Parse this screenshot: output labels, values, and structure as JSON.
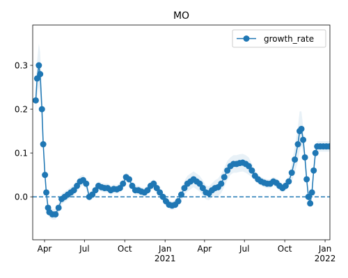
{
  "chart_data": {
    "type": "line",
    "title": "MO",
    "x": [
      "2020-03-12",
      "2020-03-15",
      "2020-03-19",
      "2020-03-22",
      "2020-03-26",
      "2020-03-29",
      "2020-04-02",
      "2020-04-05",
      "2020-04-09",
      "2020-04-12",
      "2020-04-19",
      "2020-04-26",
      "2020-05-03",
      "2020-05-10",
      "2020-05-17",
      "2020-05-24",
      "2020-05-31",
      "2020-06-07",
      "2020-06-14",
      "2020-06-21",
      "2020-06-28",
      "2020-07-05",
      "2020-07-12",
      "2020-07-19",
      "2020-07-26",
      "2020-08-02",
      "2020-08-09",
      "2020-08-16",
      "2020-08-23",
      "2020-08-30",
      "2020-09-06",
      "2020-09-13",
      "2020-09-20",
      "2020-09-27",
      "2020-10-04",
      "2020-10-11",
      "2020-10-18",
      "2020-10-25",
      "2020-11-01",
      "2020-11-08",
      "2020-11-15",
      "2020-11-22",
      "2020-11-29",
      "2020-12-06",
      "2020-12-13",
      "2020-12-20",
      "2020-12-27",
      "2021-01-03",
      "2021-01-10",
      "2021-01-17",
      "2021-01-24",
      "2021-01-31",
      "2021-02-07",
      "2021-02-14",
      "2021-02-21",
      "2021-02-28",
      "2021-03-07",
      "2021-03-14",
      "2021-03-21",
      "2021-03-28",
      "2021-04-04",
      "2021-04-11",
      "2021-04-18",
      "2021-04-25",
      "2021-05-02",
      "2021-05-09",
      "2021-05-16",
      "2021-05-23",
      "2021-05-30",
      "2021-06-06",
      "2021-06-13",
      "2021-06-20",
      "2021-06-27",
      "2021-07-04",
      "2021-07-11",
      "2021-07-18",
      "2021-07-25",
      "2021-08-01",
      "2021-08-08",
      "2021-08-15",
      "2021-08-22",
      "2021-08-29",
      "2021-09-05",
      "2021-09-12",
      "2021-09-19",
      "2021-09-26",
      "2021-10-03",
      "2021-10-10",
      "2021-10-17",
      "2021-10-24",
      "2021-10-31",
      "2021-11-04",
      "2021-11-08",
      "2021-11-12",
      "2021-11-16",
      "2021-11-20",
      "2021-11-24",
      "2021-11-28",
      "2021-12-02",
      "2021-12-06",
      "2021-12-10",
      "2021-12-14",
      "2021-12-21",
      "2021-12-28",
      "2022-01-04",
      "2022-01-11"
    ],
    "series": [
      {
        "name": "growth_rate",
        "color": "#1f77b4",
        "values": [
          0.22,
          0.27,
          0.3,
          0.28,
          0.2,
          0.12,
          0.05,
          0.01,
          -0.025,
          -0.035,
          -0.04,
          -0.04,
          -0.025,
          -0.005,
          0.0,
          0.005,
          0.01,
          0.015,
          0.025,
          0.035,
          0.038,
          0.03,
          0.0,
          0.005,
          0.015,
          0.025,
          0.022,
          0.02,
          0.02,
          0.015,
          0.018,
          0.017,
          0.02,
          0.03,
          0.045,
          0.04,
          0.025,
          0.015,
          0.015,
          0.012,
          0.01,
          0.015,
          0.025,
          0.03,
          0.02,
          0.01,
          0.0,
          -0.01,
          -0.018,
          -0.02,
          -0.018,
          -0.01,
          0.005,
          0.02,
          0.03,
          0.035,
          0.04,
          0.035,
          0.03,
          0.02,
          0.01,
          0.008,
          0.015,
          0.02,
          0.022,
          0.03,
          0.045,
          0.06,
          0.07,
          0.075,
          0.075,
          0.077,
          0.078,
          0.075,
          0.07,
          0.06,
          0.048,
          0.04,
          0.035,
          0.032,
          0.03,
          0.03,
          0.035,
          0.032,
          0.025,
          0.02,
          0.025,
          0.035,
          0.055,
          0.085,
          0.12,
          0.15,
          0.155,
          0.13,
          0.09,
          0.04,
          0.0,
          -0.015,
          0.01,
          0.06,
          0.1,
          0.115,
          0.115,
          0.115,
          0.115,
          0.115
        ],
        "error": [
          0.03,
          0.04,
          0.05,
          0.05,
          0.04,
          0.03,
          0.02,
          0.015,
          0.012,
          0.012,
          0.012,
          0.012,
          0.012,
          0.012,
          0.012,
          0.012,
          0.012,
          0.012,
          0.012,
          0.012,
          0.012,
          0.012,
          0.01,
          0.01,
          0.01,
          0.01,
          0.01,
          0.01,
          0.01,
          0.01,
          0.01,
          0.01,
          0.01,
          0.01,
          0.01,
          0.01,
          0.01,
          0.01,
          0.01,
          0.01,
          0.01,
          0.01,
          0.01,
          0.01,
          0.01,
          0.01,
          0.01,
          0.01,
          0.01,
          0.01,
          0.01,
          0.012,
          0.014,
          0.016,
          0.018,
          0.018,
          0.018,
          0.018,
          0.018,
          0.018,
          0.016,
          0.016,
          0.016,
          0.018,
          0.02,
          0.022,
          0.022,
          0.022,
          0.02,
          0.02,
          0.02,
          0.02,
          0.02,
          0.02,
          0.02,
          0.015,
          0.012,
          0.01,
          0.01,
          0.01,
          0.01,
          0.01,
          0.01,
          0.01,
          0.01,
          0.01,
          0.01,
          0.012,
          0.02,
          0.03,
          0.04,
          0.045,
          0.04,
          0.03,
          0.02,
          0.015,
          0.01,
          0.01,
          0.01,
          0.012,
          0.012,
          0.012,
          0.012,
          0.012,
          0.012,
          0.012
        ]
      }
    ],
    "xlim": [
      "2020-03-05",
      "2022-01-12"
    ],
    "xticks": [
      {
        "value": "2020-04-01",
        "label": "Apr"
      },
      {
        "value": "2020-07-01",
        "label": "Jul"
      },
      {
        "value": "2020-10-01",
        "label": "Oct"
      },
      {
        "value": "2021-01-01",
        "label": "Jan 2021"
      },
      {
        "value": "2021-04-01",
        "label": "Apr"
      },
      {
        "value": "2021-07-01",
        "label": "Jul"
      },
      {
        "value": "2021-10-01",
        "label": "Oct"
      },
      {
        "value": "2022-01-01",
        "label": "Jan 2022"
      }
    ],
    "ylim": [
      -0.098,
      0.392
    ],
    "yticks": [
      {
        "value": 0,
        "label": "0.0"
      },
      0.1,
      0.2,
      0.3
    ],
    "reference_line": 0,
    "legend": "upper right"
  }
}
